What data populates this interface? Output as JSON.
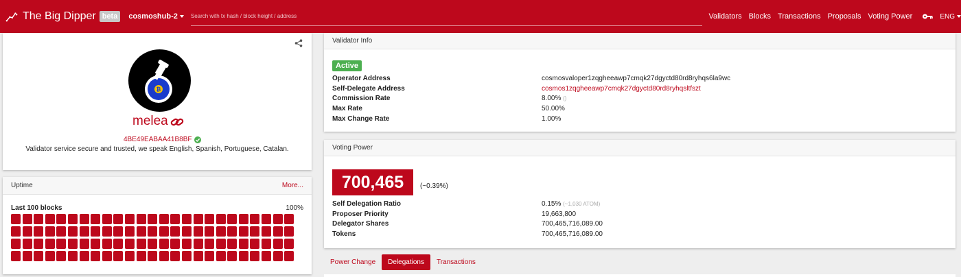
{
  "navbar": {
    "title": "The Big Dipper",
    "beta": "beta",
    "chain": "cosmoshub-2",
    "search_placeholder": "Search with tx hash / block height / address",
    "links": [
      "Validators",
      "Blocks",
      "Transactions",
      "Proposals",
      "Voting Power"
    ],
    "language": "ENG"
  },
  "profile": {
    "moniker": "melea",
    "hex_address": "4BE49EABAA41B8BF",
    "details": "Validator service secure and trusted, we speak English, Spanish, Portuguese, Catalan."
  },
  "uptime": {
    "title": "Uptime",
    "more": "More...",
    "label": "Last 100 blocks",
    "percent": "100%",
    "blocks_count": 100
  },
  "validator_info": {
    "title": "Validator Info",
    "status": "Active",
    "rows": [
      {
        "key": "Operator Address",
        "value": "cosmosvaloper1zqgheeawp7cmqk27dgyctd80rd8ryhqs6la9wc"
      },
      {
        "key": "Self-Delegate Address",
        "value": "cosmos1zqgheeawp7cmqk27dgyctd80rd8ryhqsltfszt"
      },
      {
        "key": "Commission Rate",
        "value": "8.00%",
        "extra": "()"
      },
      {
        "key": "Max Rate",
        "value": "50.00%"
      },
      {
        "key": "Max Change Rate",
        "value": "1.00%"
      }
    ]
  },
  "voting_power": {
    "title": "Voting Power",
    "value": "700,465",
    "percent": "(~0.39%)",
    "rows": [
      {
        "key": "Self Delegation Ratio",
        "value": "0.15%",
        "extra": "(~1,030 ATOM)"
      },
      {
        "key": "Proposer Priority",
        "value": "19,663,800"
      },
      {
        "key": "Delegator Shares",
        "value": "700,465,716,089.00"
      },
      {
        "key": "Tokens",
        "value": "700,465,716,089.00"
      }
    ]
  },
  "tabs": [
    "Power Change",
    "Delegations",
    "Transactions"
  ],
  "colors": {
    "accent": "#bd081c",
    "active": "#4caf50"
  }
}
